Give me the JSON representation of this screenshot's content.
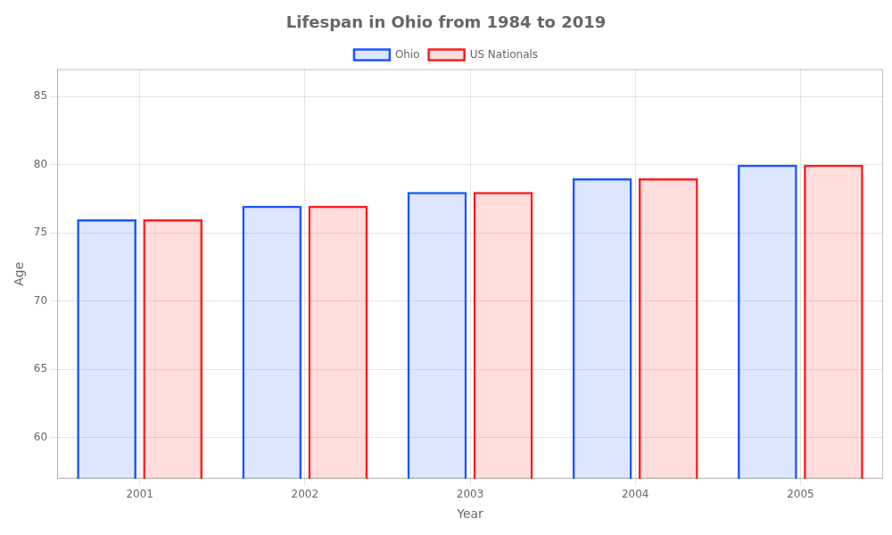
{
  "chart_data": {
    "type": "bar",
    "title": "Lifespan in Ohio from 1984 to 2019",
    "x_label": "Year",
    "y_label": "Age",
    "categories": [
      "2001",
      "2002",
      "2003",
      "2004",
      "2005"
    ],
    "series": [
      {
        "name": "Ohio",
        "color": "#1a55ff",
        "values": [
          76,
          77,
          78,
          79,
          80
        ]
      },
      {
        "name": "US Nationals",
        "color": "#ff1a1a",
        "values": [
          76,
          77,
          78,
          79,
          80
        ]
      }
    ],
    "ylim": [
      57,
      87
    ],
    "yticks": [
      60,
      65,
      70,
      75,
      80,
      85
    ],
    "grid": true,
    "legend": "top"
  }
}
